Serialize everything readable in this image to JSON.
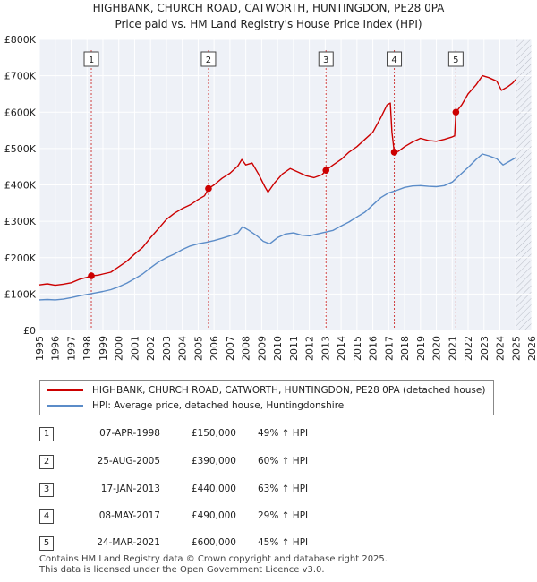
{
  "title": {
    "line1": "HIGHBANK, CHURCH ROAD, CATWORTH, HUNTINGDON, PE28 0PA",
    "line2": "Price paid vs. HM Land Registry's House Price Index (HPI)"
  },
  "legend": {
    "property": "HIGHBANK, CHURCH ROAD, CATWORTH, HUNTINGDON, PE28 0PA (detached house)",
    "hpi": "HPI: Average price, detached house, Huntingdonshire"
  },
  "transactions": [
    {
      "num": "1",
      "date": "07-APR-1998",
      "price": "£150,000",
      "hpi": "49% ↑ HPI"
    },
    {
      "num": "2",
      "date": "25-AUG-2005",
      "price": "£390,000",
      "hpi": "60% ↑ HPI"
    },
    {
      "num": "3",
      "date": "17-JAN-2013",
      "price": "£440,000",
      "hpi": "63% ↑ HPI"
    },
    {
      "num": "4",
      "date": "08-MAY-2017",
      "price": "£490,000",
      "hpi": "29% ↑ HPI"
    },
    {
      "num": "5",
      "date": "24-MAR-2021",
      "price": "£600,000",
      "hpi": "45% ↑ HPI"
    }
  ],
  "footer": {
    "line1": "Contains HM Land Registry data © Crown copyright and database right 2025.",
    "line2": "This data is licensed under the Open Government Licence v3.0."
  },
  "chart_data": {
    "type": "line",
    "title": "HIGHBANK, CHURCH ROAD, CATWORTH, HUNTINGDON, PE28 0PA — Price paid vs. HM Land Registry's House Price Index (HPI)",
    "xlabel": "",
    "ylabel": "",
    "xlim": [
      1995,
      2026
    ],
    "ylim": [
      0,
      800000
    ],
    "x_ticks": [
      1995,
      1996,
      1997,
      1998,
      1999,
      2000,
      2001,
      2002,
      2003,
      2004,
      2005,
      2006,
      2007,
      2008,
      2009,
      2010,
      2011,
      2012,
      2013,
      2014,
      2015,
      2016,
      2017,
      2018,
      2019,
      2020,
      2021,
      2022,
      2023,
      2024,
      2025,
      2026
    ],
    "y_ticks": [
      {
        "value": 0,
        "label": "£0"
      },
      {
        "value": 100000,
        "label": "£100K"
      },
      {
        "value": 200000,
        "label": "£200K"
      },
      {
        "value": 300000,
        "label": "£300K"
      },
      {
        "value": 400000,
        "label": "£400K"
      },
      {
        "value": 500000,
        "label": "£500K"
      },
      {
        "value": 600000,
        "label": "£600K"
      },
      {
        "value": 700000,
        "label": "£700K"
      },
      {
        "value": 800000,
        "label": "£800K"
      }
    ],
    "grid": true,
    "forecast_from": 2025.0,
    "series": [
      {
        "name": "HIGHBANK, CHURCH ROAD, CATWORTH, HUNTINGDON, PE28 0PA (detached house)",
        "color": "#cc0000",
        "points": [
          [
            1995.0,
            125000
          ],
          [
            1995.5,
            128000
          ],
          [
            1996.0,
            124000
          ],
          [
            1996.5,
            127000
          ],
          [
            1997.0,
            131000
          ],
          [
            1997.5,
            140000
          ],
          [
            1998.0,
            146000
          ],
          [
            1998.27,
            150000
          ],
          [
            1998.7,
            152000
          ],
          [
            1999.0,
            155000
          ],
          [
            1999.5,
            160000
          ],
          [
            2000.0,
            175000
          ],
          [
            2000.5,
            190000
          ],
          [
            2001.0,
            210000
          ],
          [
            2001.5,
            228000
          ],
          [
            2002.0,
            255000
          ],
          [
            2002.5,
            280000
          ],
          [
            2003.0,
            305000
          ],
          [
            2003.5,
            322000
          ],
          [
            2004.0,
            335000
          ],
          [
            2004.5,
            345000
          ],
          [
            2005.0,
            360000
          ],
          [
            2005.4,
            370000
          ],
          [
            2005.65,
            390000
          ],
          [
            2006.0,
            400000
          ],
          [
            2006.5,
            418000
          ],
          [
            2007.0,
            432000
          ],
          [
            2007.5,
            452000
          ],
          [
            2007.75,
            470000
          ],
          [
            2008.0,
            455000
          ],
          [
            2008.4,
            460000
          ],
          [
            2008.8,
            430000
          ],
          [
            2009.2,
            395000
          ],
          [
            2009.4,
            380000
          ],
          [
            2009.8,
            405000
          ],
          [
            2010.3,
            430000
          ],
          [
            2010.8,
            445000
          ],
          [
            2011.3,
            435000
          ],
          [
            2011.8,
            425000
          ],
          [
            2012.3,
            420000
          ],
          [
            2012.8,
            428000
          ],
          [
            2013.05,
            440000
          ],
          [
            2013.5,
            455000
          ],
          [
            2014.0,
            470000
          ],
          [
            2014.5,
            490000
          ],
          [
            2015.0,
            505000
          ],
          [
            2015.5,
            525000
          ],
          [
            2016.0,
            545000
          ],
          [
            2016.5,
            585000
          ],
          [
            2016.9,
            620000
          ],
          [
            2017.1,
            625000
          ],
          [
            2017.2,
            545000
          ],
          [
            2017.35,
            490000
          ],
          [
            2017.6,
            492000
          ],
          [
            2018.0,
            505000
          ],
          [
            2018.5,
            518000
          ],
          [
            2019.0,
            528000
          ],
          [
            2019.5,
            522000
          ],
          [
            2020.0,
            520000
          ],
          [
            2020.5,
            525000
          ],
          [
            2021.0,
            532000
          ],
          [
            2021.15,
            535000
          ],
          [
            2021.23,
            600000
          ],
          [
            2021.6,
            620000
          ],
          [
            2022.0,
            650000
          ],
          [
            2022.5,
            675000
          ],
          [
            2022.9,
            700000
          ],
          [
            2023.3,
            695000
          ],
          [
            2023.8,
            685000
          ],
          [
            2024.1,
            660000
          ],
          [
            2024.5,
            670000
          ],
          [
            2024.8,
            680000
          ],
          [
            2025.0,
            690000
          ]
        ]
      },
      {
        "name": "HPI: Average price, detached house, Huntingdonshire",
        "color": "#5b8cc8",
        "points": [
          [
            1995.0,
            84000
          ],
          [
            1995.5,
            85000
          ],
          [
            1996.0,
            84000
          ],
          [
            1996.5,
            86000
          ],
          [
            1997.0,
            90000
          ],
          [
            1997.5,
            95000
          ],
          [
            1998.0,
            99000
          ],
          [
            1998.5,
            103000
          ],
          [
            1999.0,
            107000
          ],
          [
            1999.5,
            112000
          ],
          [
            2000.0,
            120000
          ],
          [
            2000.5,
            130000
          ],
          [
            2001.0,
            142000
          ],
          [
            2001.5,
            155000
          ],
          [
            2002.0,
            172000
          ],
          [
            2002.5,
            188000
          ],
          [
            2003.0,
            200000
          ],
          [
            2003.5,
            210000
          ],
          [
            2004.0,
            222000
          ],
          [
            2004.5,
            232000
          ],
          [
            2005.0,
            238000
          ],
          [
            2005.5,
            242000
          ],
          [
            2006.0,
            247000
          ],
          [
            2006.5,
            253000
          ],
          [
            2007.0,
            260000
          ],
          [
            2007.5,
            268000
          ],
          [
            2007.8,
            285000
          ],
          [
            2008.2,
            275000
          ],
          [
            2008.7,
            260000
          ],
          [
            2009.1,
            245000
          ],
          [
            2009.5,
            238000
          ],
          [
            2010.0,
            255000
          ],
          [
            2010.5,
            265000
          ],
          [
            2011.0,
            268000
          ],
          [
            2011.5,
            262000
          ],
          [
            2012.0,
            260000
          ],
          [
            2012.5,
            265000
          ],
          [
            2013.0,
            270000
          ],
          [
            2013.5,
            275000
          ],
          [
            2014.0,
            287000
          ],
          [
            2014.5,
            298000
          ],
          [
            2015.0,
            312000
          ],
          [
            2015.5,
            325000
          ],
          [
            2016.0,
            345000
          ],
          [
            2016.5,
            365000
          ],
          [
            2017.0,
            378000
          ],
          [
            2017.5,
            385000
          ],
          [
            2018.0,
            393000
          ],
          [
            2018.5,
            397000
          ],
          [
            2019.0,
            398000
          ],
          [
            2019.5,
            396000
          ],
          [
            2020.0,
            395000
          ],
          [
            2020.5,
            398000
          ],
          [
            2021.0,
            408000
          ],
          [
            2021.5,
            428000
          ],
          [
            2022.0,
            448000
          ],
          [
            2022.5,
            470000
          ],
          [
            2022.9,
            485000
          ],
          [
            2023.3,
            480000
          ],
          [
            2023.8,
            472000
          ],
          [
            2024.2,
            455000
          ],
          [
            2024.6,
            465000
          ],
          [
            2025.0,
            475000
          ]
        ]
      }
    ],
    "sales": [
      {
        "label": "1",
        "x": 1998.27,
        "y": 150000
      },
      {
        "label": "2",
        "x": 2005.65,
        "y": 390000
      },
      {
        "label": "3",
        "x": 2013.05,
        "y": 440000
      },
      {
        "label": "4",
        "x": 2017.35,
        "y": 490000
      },
      {
        "label": "5",
        "x": 2021.23,
        "y": 600000
      }
    ],
    "colors": {
      "property": "#cc0000",
      "hpi": "#5b8cc8",
      "plot_bg": "#eef1f7",
      "sale_line": "#d04040"
    }
  }
}
